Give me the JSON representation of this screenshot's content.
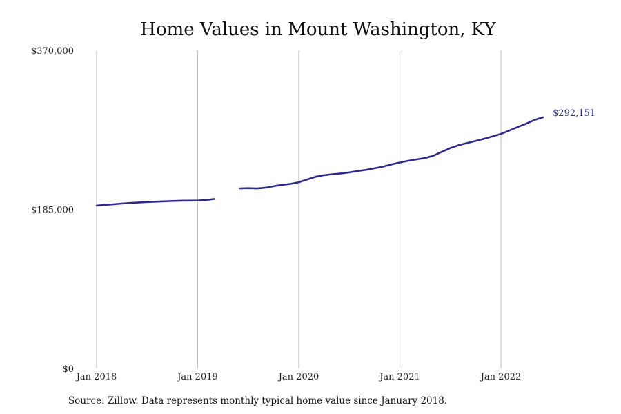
{
  "chart_data": {
    "type": "line",
    "title": "Home Values in Mount Washington, KY",
    "source": "Source: Zillow. Data represents monthly typical home value since January 2018.",
    "ylim": [
      0,
      370000
    ],
    "y_ticks": [
      {
        "value": 0,
        "label": "$0"
      },
      {
        "value": 185000,
        "label": "$185,000"
      },
      {
        "value": 370000,
        "label": "$370,000"
      }
    ],
    "x_ticks": [
      {
        "value": "2018-01",
        "label": "Jan 2018"
      },
      {
        "value": "2019-01",
        "label": "Jan 2019"
      },
      {
        "value": "2020-01",
        "label": "Jan 2020"
      },
      {
        "value": "2021-01",
        "label": "Jan 2021"
      },
      {
        "value": "2022-01",
        "label": "Jan 2022"
      }
    ],
    "x_range": [
      "2018-01",
      "2022-12"
    ],
    "grid": {
      "vertical": true,
      "horizontal": false
    },
    "series": [
      {
        "color": "#2e2a8a",
        "end_label": "$292,151",
        "segments": [
          [
            {
              "x": "2018-01",
              "y": 189500
            },
            {
              "x": "2018-02",
              "y": 190300
            },
            {
              "x": "2018-03",
              "y": 191000
            },
            {
              "x": "2018-04",
              "y": 191800
            },
            {
              "x": "2018-05",
              "y": 192500
            },
            {
              "x": "2018-06",
              "y": 193100
            },
            {
              "x": "2018-07",
              "y": 193600
            },
            {
              "x": "2018-08",
              "y": 194000
            },
            {
              "x": "2018-09",
              "y": 194400
            },
            {
              "x": "2018-10",
              "y": 194800
            },
            {
              "x": "2018-11",
              "y": 195100
            },
            {
              "x": "2018-12",
              "y": 195200
            },
            {
              "x": "2019-01",
              "y": 195300
            },
            {
              "x": "2019-02",
              "y": 196000
            },
            {
              "x": "2019-03",
              "y": 197100
            }
          ],
          [
            {
              "x": "2019-06",
              "y": 209500
            },
            {
              "x": "2019-07",
              "y": 209700
            },
            {
              "x": "2019-08",
              "y": 209400
            },
            {
              "x": "2019-09",
              "y": 210200
            },
            {
              "x": "2019-10",
              "y": 212000
            },
            {
              "x": "2019-11",
              "y": 213600
            },
            {
              "x": "2019-12",
              "y": 214700
            },
            {
              "x": "2020-01",
              "y": 216600
            },
            {
              "x": "2020-02",
              "y": 219800
            },
            {
              "x": "2020-03",
              "y": 223000
            },
            {
              "x": "2020-04",
              "y": 224800
            },
            {
              "x": "2020-05",
              "y": 225900
            },
            {
              "x": "2020-06",
              "y": 226800
            },
            {
              "x": "2020-07",
              "y": 228100
            },
            {
              "x": "2020-08",
              "y": 229600
            },
            {
              "x": "2020-09",
              "y": 231000
            },
            {
              "x": "2020-10",
              "y": 232800
            },
            {
              "x": "2020-11",
              "y": 234800
            },
            {
              "x": "2020-12",
              "y": 237300
            },
            {
              "x": "2021-01",
              "y": 239600
            },
            {
              "x": "2021-02",
              "y": 241600
            },
            {
              "x": "2021-03",
              "y": 243200
            },
            {
              "x": "2021-04",
              "y": 244800
            },
            {
              "x": "2021-05",
              "y": 247500
            },
            {
              "x": "2021-06",
              "y": 252100
            },
            {
              "x": "2021-07",
              "y": 256400
            },
            {
              "x": "2021-08",
              "y": 259800
            },
            {
              "x": "2021-09",
              "y": 262200
            },
            {
              "x": "2021-10",
              "y": 264600
            },
            {
              "x": "2021-11",
              "y": 267200
            },
            {
              "x": "2021-12",
              "y": 269900
            },
            {
              "x": "2022-01",
              "y": 272800
            },
            {
              "x": "2022-02",
              "y": 276700
            },
            {
              "x": "2022-03",
              "y": 280800
            },
            {
              "x": "2022-04",
              "y": 284800
            },
            {
              "x": "2022-05",
              "y": 289100
            },
            {
              "x": "2022-06",
              "y": 292151
            }
          ]
        ]
      }
    ]
  }
}
